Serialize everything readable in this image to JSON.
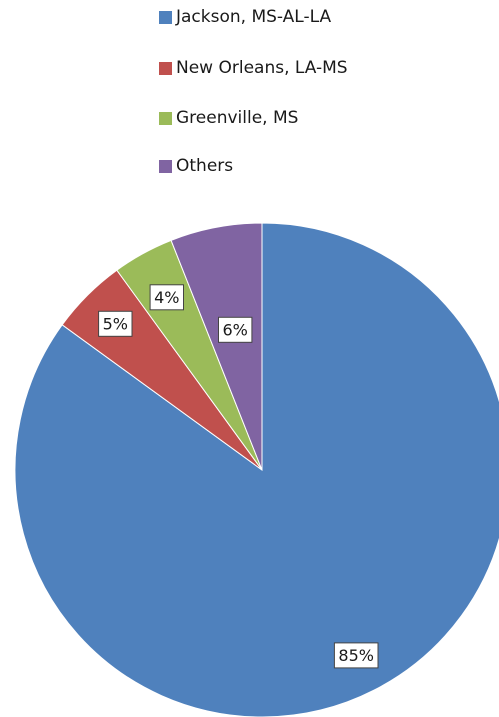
{
  "chart_data": {
    "type": "pie",
    "title": "",
    "legend_position": "top",
    "slices": [
      {
        "label": "Jackson, MS-AL-LA",
        "value": 85,
        "display": "85%",
        "color": "#4f81bd"
      },
      {
        "label": "New Orleans, LA-MS",
        "value": 5,
        "display": "5%",
        "color": "#c0504d"
      },
      {
        "label": "Greenville, MS",
        "value": 4,
        "display": "4%",
        "color": "#9bbb59"
      },
      {
        "label": "Others",
        "value": 6,
        "display": "6%",
        "color": "#8064a2"
      }
    ]
  }
}
